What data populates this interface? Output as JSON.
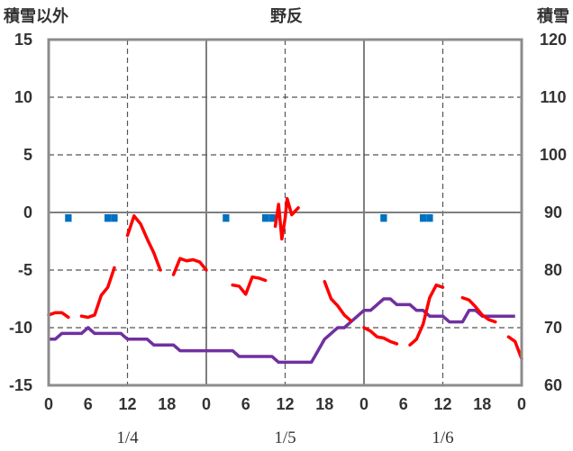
{
  "title": "野反",
  "left_axis_label": "積雪以外",
  "right_axis_label": "積雪",
  "chart_data": {
    "type": "line",
    "title": "野反",
    "left_ylabel": "積雪以外",
    "right_ylabel": "積雪",
    "left_ylim": [
      -15,
      15
    ],
    "left_yticks": [
      15,
      10,
      5,
      0,
      -5,
      -10,
      -15
    ],
    "right_ylim": [
      60,
      120
    ],
    "right_yticks": [
      120,
      110,
      100,
      90,
      80,
      70,
      60
    ],
    "xlim": [
      0,
      72
    ],
    "x_hour_ticks": [
      0,
      6,
      12,
      18,
      0,
      6,
      12,
      18,
      0,
      6,
      12,
      18,
      0
    ],
    "dates": [
      "1/4",
      "1/5",
      "1/6"
    ],
    "grid": true,
    "series": [
      {
        "axis": "left",
        "style": "line",
        "color": "#ff0000",
        "segments": [
          [
            [
              0,
              -8.9
            ],
            [
              1,
              -8.7
            ],
            [
              2,
              -8.7
            ],
            [
              3,
              -9.1
            ]
          ],
          [
            [
              5,
              -9.0
            ],
            [
              6,
              -9.1
            ],
            [
              7,
              -8.9
            ],
            [
              8,
              -7.2
            ],
            [
              9,
              -6.5
            ],
            [
              10,
              -4.8
            ]
          ],
          [
            [
              12,
              -2.0
            ],
            [
              13,
              -0.3
            ],
            [
              14,
              -1.0
            ],
            [
              15,
              -2.3
            ],
            [
              16,
              -3.5
            ],
            [
              17,
              -5.0
            ]
          ],
          [
            [
              19,
              -5.4
            ],
            [
              20,
              -4.0
            ],
            [
              21,
              -4.2
            ],
            [
              22,
              -4.1
            ],
            [
              23,
              -4.3
            ],
            [
              24,
              -5.0
            ]
          ],
          [
            [
              28,
              -6.3
            ],
            [
              29,
              -6.4
            ],
            [
              30,
              -7.1
            ],
            [
              31,
              -5.6
            ],
            [
              32,
              -5.7
            ],
            [
              33,
              -5.9
            ]
          ],
          [
            [
              34.5,
              -1.2
            ],
            [
              35,
              0.7
            ],
            [
              35.5,
              -2.3
            ],
            [
              36,
              -0.5
            ],
            [
              36.3,
              1.2
            ],
            [
              37,
              -0.2
            ],
            [
              38,
              0.4
            ]
          ],
          [
            [
              42,
              -6.0
            ],
            [
              43,
              -7.5
            ],
            [
              44,
              -8.1
            ],
            [
              45,
              -8.9
            ],
            [
              46,
              -9.4
            ]
          ],
          [
            [
              48,
              -10.0
            ],
            [
              49,
              -10.3
            ],
            [
              50,
              -10.8
            ],
            [
              51,
              -10.9
            ],
            [
              52,
              -11.2
            ],
            [
              53,
              -11.4
            ]
          ],
          [
            [
              55,
              -11.5
            ],
            [
              56,
              -11.0
            ],
            [
              57,
              -9.7
            ],
            [
              58,
              -7.4
            ],
            [
              59,
              -6.3
            ],
            [
              60,
              -6.5
            ]
          ],
          [
            [
              63,
              -7.4
            ],
            [
              64,
              -7.6
            ],
            [
              65,
              -8.2
            ],
            [
              66,
              -8.9
            ],
            [
              67,
              -9.3
            ],
            [
              68,
              -9.5
            ]
          ],
          [
            [
              70,
              -10.8
            ],
            [
              71,
              -11.2
            ],
            [
              72,
              -12.7
            ]
          ]
        ]
      },
      {
        "axis": "left",
        "style": "bar",
        "color": "#0070c0",
        "points": [
          [
            3,
            -0.5
          ],
          [
            9,
            -0.5
          ],
          [
            10,
            -0.5
          ],
          [
            27,
            -0.5
          ],
          [
            33,
            -0.5
          ],
          [
            34,
            -0.5
          ],
          [
            51,
            -0.5
          ],
          [
            57,
            -0.5
          ],
          [
            58,
            -0.5
          ]
        ]
      },
      {
        "axis": "right",
        "style": "line",
        "color": "#7030a0",
        "points": [
          [
            0,
            68
          ],
          [
            1,
            68
          ],
          [
            2,
            69
          ],
          [
            3,
            69
          ],
          [
            4,
            69
          ],
          [
            5,
            69
          ],
          [
            6,
            70
          ],
          [
            7,
            69
          ],
          [
            8,
            69
          ],
          [
            9,
            69
          ],
          [
            10,
            69
          ],
          [
            11,
            69
          ],
          [
            12,
            68
          ],
          [
            13,
            68
          ],
          [
            14,
            68
          ],
          [
            15,
            68
          ],
          [
            16,
            67
          ],
          [
            17,
            67
          ],
          [
            18,
            67
          ],
          [
            19,
            67
          ],
          [
            20,
            66
          ],
          [
            21,
            66
          ],
          [
            22,
            66
          ],
          [
            23,
            66
          ],
          [
            24,
            66
          ],
          [
            25,
            66
          ],
          [
            26,
            66
          ],
          [
            27,
            66
          ],
          [
            28,
            66
          ],
          [
            29,
            65
          ],
          [
            30,
            65
          ],
          [
            31,
            65
          ],
          [
            32,
            65
          ],
          [
            33,
            65
          ],
          [
            34,
            65
          ],
          [
            35,
            64
          ],
          [
            36,
            64
          ],
          [
            37,
            64
          ],
          [
            38,
            64
          ],
          [
            39,
            64
          ],
          [
            40,
            64
          ],
          [
            41,
            66
          ],
          [
            42,
            68
          ],
          [
            43,
            69
          ],
          [
            44,
            70
          ],
          [
            45,
            70
          ],
          [
            46,
            71
          ],
          [
            47,
            72
          ],
          [
            48,
            73
          ],
          [
            49,
            73
          ],
          [
            50,
            74
          ],
          [
            51,
            75
          ],
          [
            52,
            75
          ],
          [
            53,
            74
          ],
          [
            54,
            74
          ],
          [
            55,
            74
          ],
          [
            56,
            73
          ],
          [
            57,
            73
          ],
          [
            58,
            72
          ],
          [
            59,
            72
          ],
          [
            60,
            72
          ],
          [
            61,
            71
          ],
          [
            62,
            71
          ],
          [
            63,
            71
          ],
          [
            64,
            73
          ],
          [
            65,
            73
          ],
          [
            66,
            72
          ],
          [
            67,
            72
          ],
          [
            68,
            72
          ],
          [
            69,
            72
          ],
          [
            70,
            72
          ],
          [
            71,
            72
          ]
        ]
      }
    ]
  }
}
